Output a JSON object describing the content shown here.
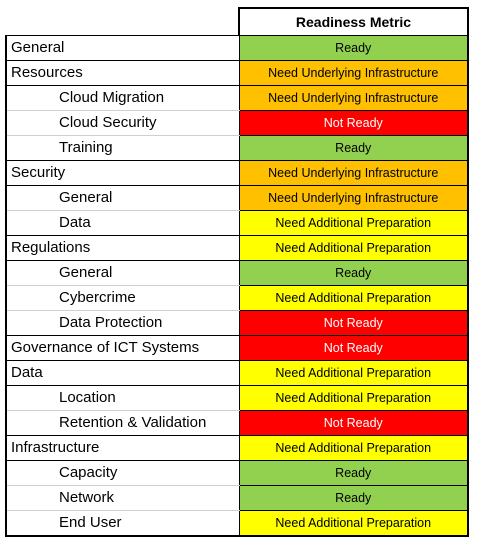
{
  "table": {
    "title": "Readiness Metric",
    "statuses": {
      "ready": {
        "label": "Ready",
        "color": "#92d050"
      },
      "infra": {
        "label": "Need Underlying Infrastructure",
        "color": "#ffc000"
      },
      "notready": {
        "label": "Not Ready",
        "color": "#ff0000"
      },
      "prep": {
        "label": "Need Additional Preparation",
        "color": "#ffff00"
      }
    },
    "rows": [
      {
        "label": "General",
        "level": "category",
        "status": "ready",
        "status_label": "Ready"
      },
      {
        "label": "Resources",
        "level": "category",
        "status": "infra",
        "status_label": "Need Underlying Infrastructure"
      },
      {
        "label": "Cloud Migration",
        "level": "sub",
        "status": "infra",
        "status_label": "Need Underlying Infrastructure"
      },
      {
        "label": "Cloud Security",
        "level": "sub",
        "status": "notready",
        "status_label": "Not Ready"
      },
      {
        "label": "Training",
        "level": "sub",
        "status": "ready",
        "status_label": "Ready"
      },
      {
        "label": "Security",
        "level": "category",
        "status": "infra",
        "status_label": "Need Underlying Infrastructure"
      },
      {
        "label": "General",
        "level": "sub",
        "status": "infra",
        "status_label": "Need Underlying Infrastructure"
      },
      {
        "label": "Data",
        "level": "sub",
        "status": "prep",
        "status_label": "Need Additional Preparation"
      },
      {
        "label": "Regulations",
        "level": "category",
        "status": "prep",
        "status_label": "Need Additional Preparation"
      },
      {
        "label": "General",
        "level": "sub",
        "status": "ready",
        "status_label": "Ready"
      },
      {
        "label": "Cybercrime",
        "level": "sub",
        "status": "prep",
        "status_label": "Need Additional Preparation"
      },
      {
        "label": "Data Protection",
        "level": "sub",
        "status": "notready",
        "status_label": "Not Ready"
      },
      {
        "label": "Governance of ICT Systems",
        "level": "category",
        "status": "notready",
        "status_label": "Not Ready"
      },
      {
        "label": "Data",
        "level": "category",
        "status": "prep",
        "status_label": "Need Additional Preparation"
      },
      {
        "label": "Location",
        "level": "sub",
        "status": "prep",
        "status_label": "Need Additional Preparation"
      },
      {
        "label": "Retention & Validation",
        "level": "sub",
        "status": "notready",
        "status_label": "Not Ready"
      },
      {
        "label": "Infrastructure",
        "level": "category",
        "status": "prep",
        "status_label": "Need Additional Preparation"
      },
      {
        "label": "Capacity",
        "level": "sub",
        "status": "ready",
        "status_label": "Ready"
      },
      {
        "label": "Network",
        "level": "sub",
        "status": "ready",
        "status_label": "Ready"
      },
      {
        "label": "End User",
        "level": "sub",
        "status": "prep",
        "status_label": "Need Additional Preparation"
      }
    ]
  }
}
